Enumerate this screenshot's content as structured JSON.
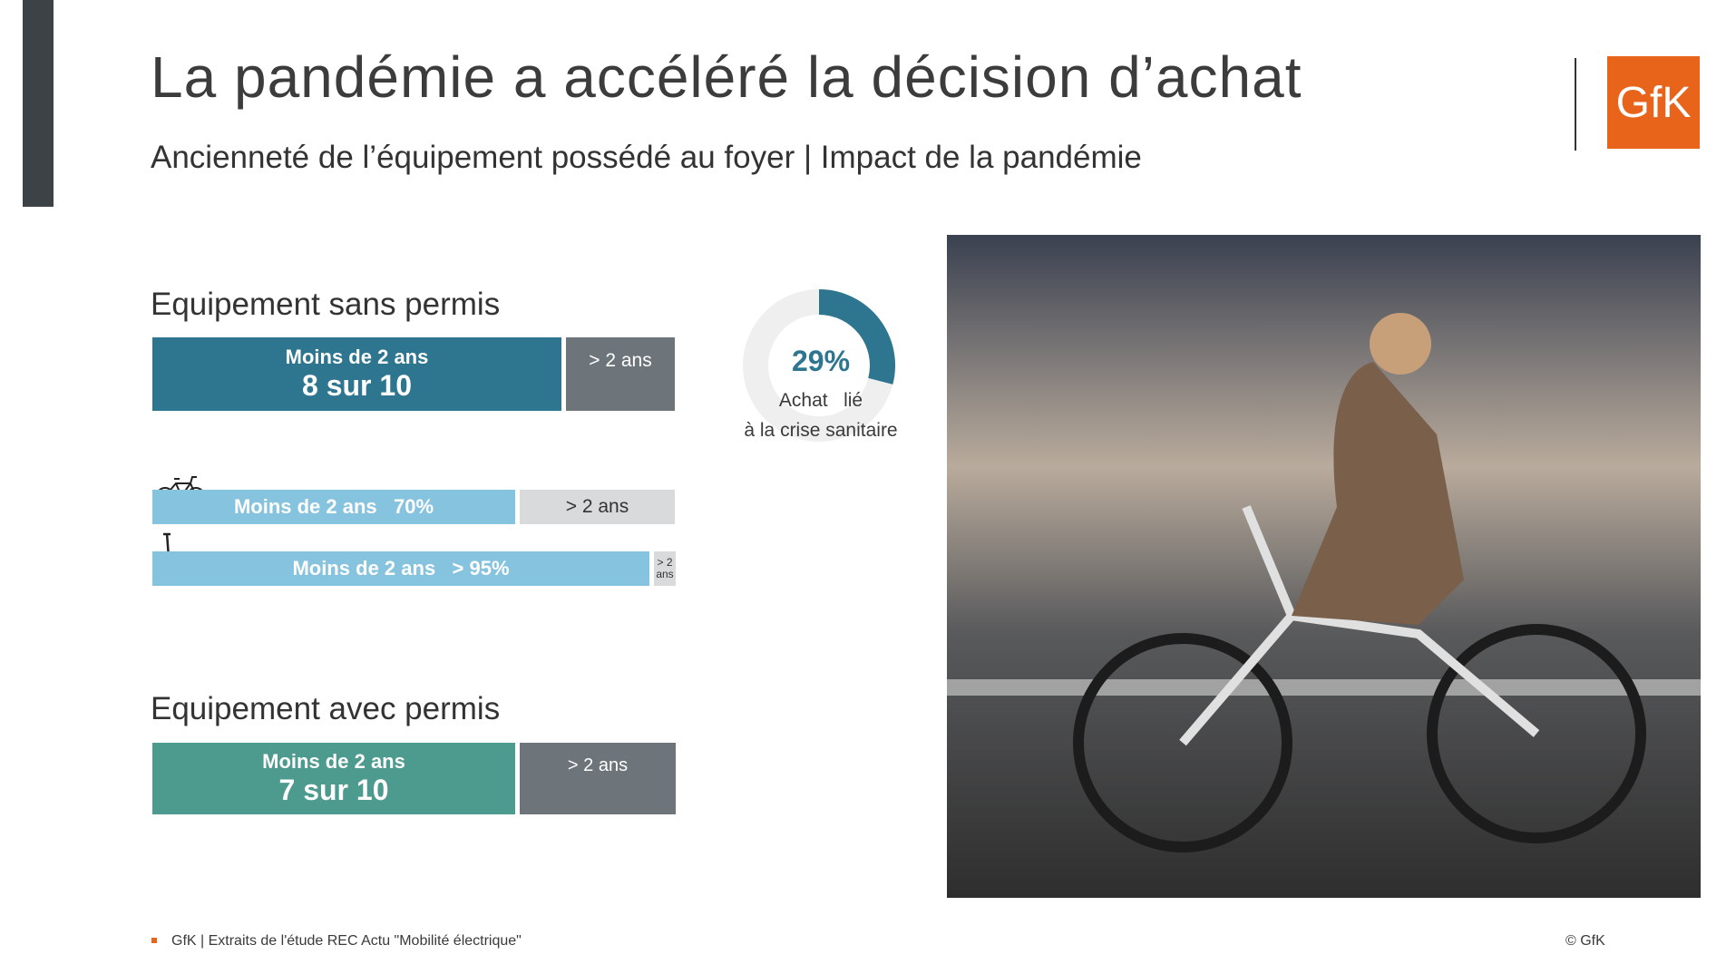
{
  "header": {
    "title": "La pandémie a accéléré la décision d’achat",
    "subtitle": "Ancienneté de l’équipement possédé au foyer | Impact de la pandémie",
    "logo": "GfK"
  },
  "section_sans_permis": {
    "heading": "Equipement sans permis",
    "main_bar": {
      "label": "Moins de 2 ans",
      "value_text": "8 sur 10",
      "rest": "> 2 ans"
    },
    "bike_bar": {
      "label": "Moins de 2 ans   70%",
      "rest": "> 2 ans"
    },
    "scooter_bar": {
      "label": "Moins de 2 ans   > 95%",
      "rest": "> 2 ans"
    }
  },
  "donut": {
    "value": 29,
    "label": "29%",
    "caption_line1": "Achat   lié",
    "caption_line2": "à la crise sanitaire"
  },
  "section_avec_permis": {
    "heading": "Equipement avec permis",
    "main_bar": {
      "label": "Moins de 2 ans",
      "value_text": "7 sur 10",
      "rest": "> 2 ans"
    }
  },
  "footer": {
    "source": "GfK | Extraits de l'étude REC Actu \"Mobilité électrique\"",
    "copyright": "© GfK"
  }
}
